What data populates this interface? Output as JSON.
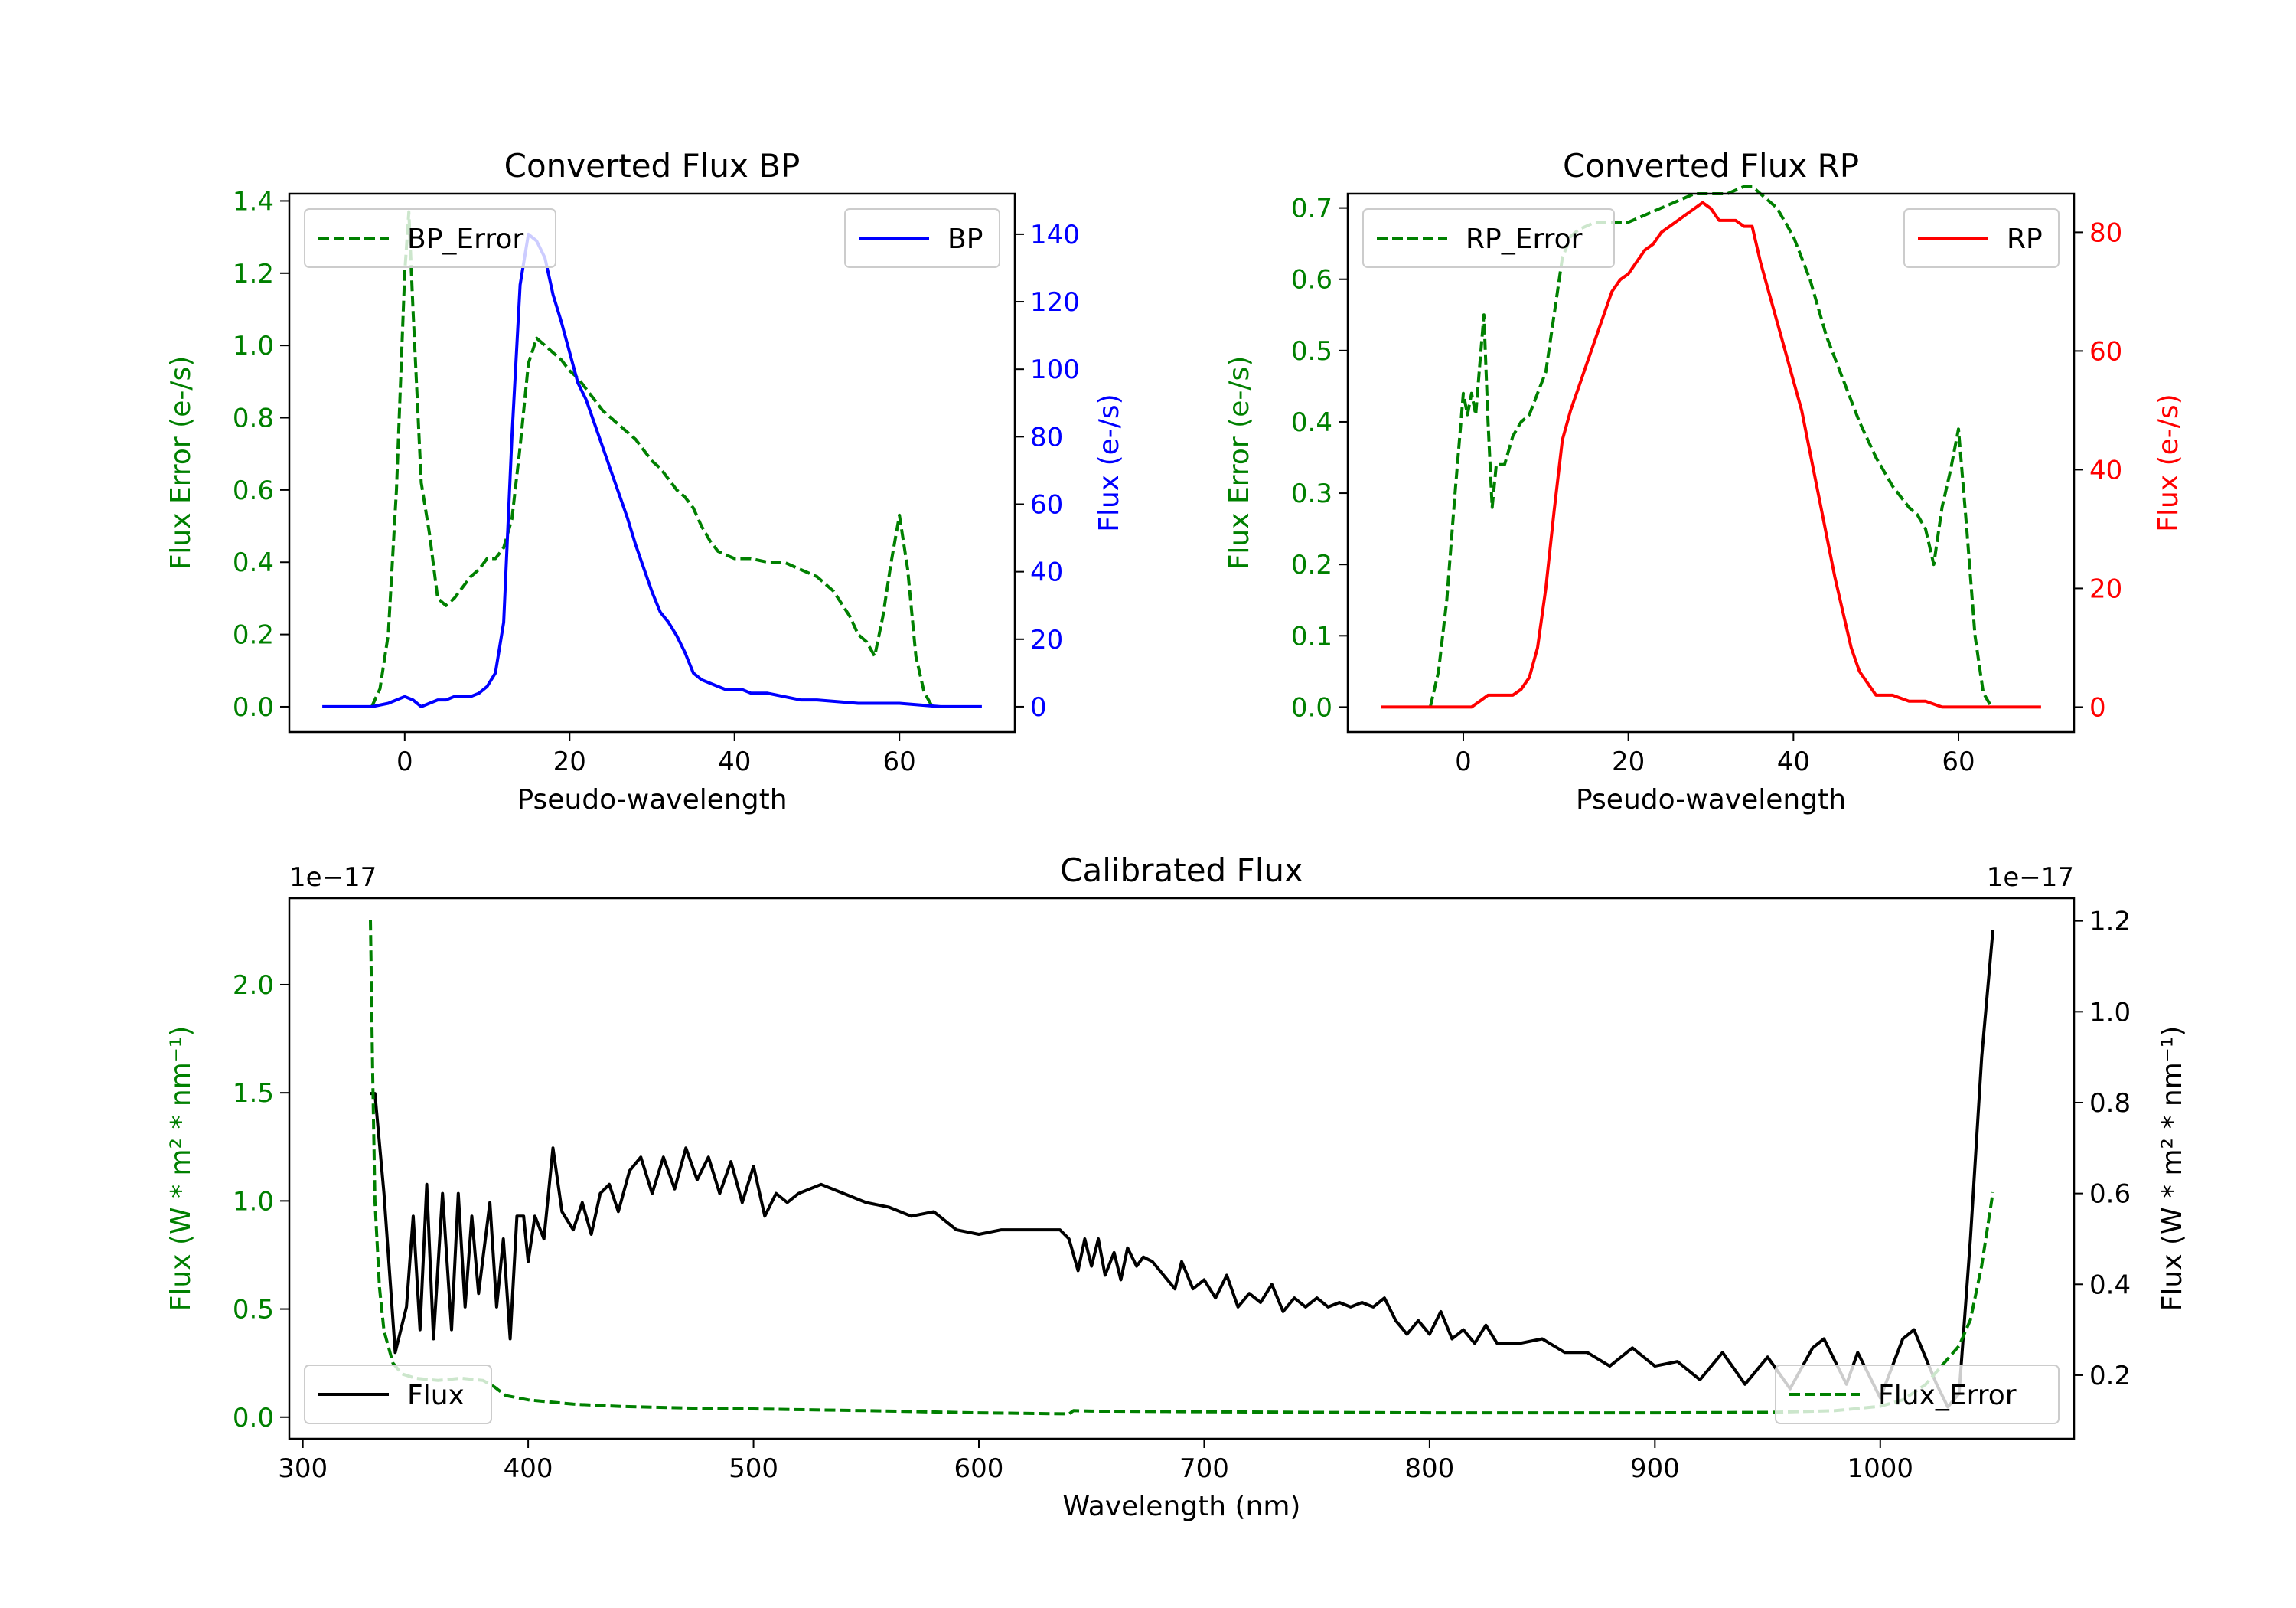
{
  "colors": {
    "green": "#008000",
    "blue": "#0000ff",
    "red": "#ff0000",
    "black": "#000000"
  },
  "chart_data": [
    {
      "id": "bp",
      "type": "line",
      "title": "Converted Flux BP",
      "xlabel": "Pseudo-wavelength",
      "ylabel_left": "Flux Error (e-/s)",
      "ylabel_right": "Flux (e-/s)",
      "xlim": [
        -14,
        74
      ],
      "ylim_left": [
        -0.07,
        1.42
      ],
      "ylim_right": [
        -7.5,
        152
      ],
      "xticks": [
        0,
        20,
        40,
        60
      ],
      "yticks_left": [
        0.0,
        0.2,
        0.4,
        0.6,
        0.8,
        1.0,
        1.2,
        1.4
      ],
      "yticks_right": [
        0,
        20,
        40,
        60,
        80,
        100,
        120,
        140
      ],
      "yticklabels_left": [
        "0.0",
        "0.2",
        "0.4",
        "0.6",
        "0.8",
        "1.0",
        "1.2",
        "1.4"
      ],
      "yticklabels_right": [
        "0",
        "20",
        "40",
        "60",
        "80",
        "100",
        "120",
        "140"
      ],
      "legend_left": "BP_Error",
      "legend_right": "BP",
      "series": [
        {
          "name": "BP_Error",
          "axis": "left",
          "style": "dashed",
          "color": "#008000",
          "x": [
            -4,
            -3,
            -2,
            -1,
            0,
            0.5,
            1,
            2,
            3,
            4,
            5,
            6,
            7,
            8,
            9,
            10,
            11,
            12,
            13,
            14,
            15,
            16,
            17,
            18,
            19,
            20,
            21,
            22,
            23,
            24,
            25,
            26,
            27,
            28,
            29,
            30,
            31,
            32,
            33,
            34,
            35,
            36,
            37,
            38,
            39,
            40,
            42,
            44,
            46,
            48,
            50,
            52,
            54,
            55,
            56,
            57,
            58,
            59,
            60,
            61,
            62,
            63,
            64,
            65
          ],
          "y": [
            0.0,
            0.05,
            0.2,
            0.6,
            1.2,
            1.37,
            1.1,
            0.62,
            0.48,
            0.3,
            0.28,
            0.3,
            0.33,
            0.36,
            0.38,
            0.41,
            0.41,
            0.44,
            0.52,
            0.72,
            0.95,
            1.02,
            1.0,
            0.98,
            0.96,
            0.93,
            0.91,
            0.88,
            0.85,
            0.82,
            0.8,
            0.78,
            0.76,
            0.74,
            0.71,
            0.68,
            0.66,
            0.63,
            0.6,
            0.58,
            0.55,
            0.5,
            0.46,
            0.43,
            0.42,
            0.41,
            0.41,
            0.4,
            0.4,
            0.38,
            0.36,
            0.32,
            0.25,
            0.2,
            0.18,
            0.14,
            0.25,
            0.4,
            0.53,
            0.38,
            0.14,
            0.04,
            0.0,
            0.0
          ]
        },
        {
          "name": "BP",
          "axis": "right",
          "style": "solid",
          "color": "#0000ff",
          "x": [
            -10,
            -6,
            -4,
            -2,
            0,
            1,
            2,
            3,
            4,
            5,
            6,
            7,
            8,
            9,
            10,
            11,
            12,
            13,
            14,
            15,
            16,
            17,
            18,
            19,
            20,
            21,
            22,
            23,
            24,
            25,
            26,
            27,
            28,
            29,
            30,
            31,
            32,
            33,
            34,
            35,
            36,
            37,
            38,
            39,
            40,
            41,
            42,
            44,
            46,
            48,
            50,
            55,
            60,
            65,
            70
          ],
          "y": [
            0,
            0,
            0,
            1,
            3,
            2,
            0,
            1,
            2,
            2,
            3,
            3,
            3,
            4,
            6,
            10,
            25,
            80,
            125,
            140,
            138,
            133,
            122,
            114,
            105,
            96,
            91,
            84,
            77,
            70,
            63,
            56,
            48,
            41,
            34,
            28,
            25,
            21,
            16,
            10,
            8,
            7,
            6,
            5,
            5,
            5,
            4,
            4,
            3,
            2,
            2,
            1,
            1,
            0,
            0
          ]
        }
      ]
    },
    {
      "id": "rp",
      "type": "line",
      "title": "Converted Flux RP",
      "xlabel": "Pseudo-wavelength",
      "ylabel_left": "Flux Error (e-/s)",
      "ylabel_right": "Flux (e-/s)",
      "xlim": [
        -14,
        74
      ],
      "ylim_left": [
        -0.035,
        0.72
      ],
      "ylim_right": [
        -4.2,
        86.5
      ],
      "xticks": [
        0,
        20,
        40,
        60
      ],
      "yticks_left": [
        0.0,
        0.1,
        0.2,
        0.3,
        0.4,
        0.5,
        0.6,
        0.7
      ],
      "yticks_right": [
        0,
        20,
        40,
        60,
        80
      ],
      "yticklabels_left": [
        "0.0",
        "0.1",
        "0.2",
        "0.3",
        "0.4",
        "0.5",
        "0.6",
        "0.7"
      ],
      "yticklabels_right": [
        "0",
        "20",
        "40",
        "60",
        "80"
      ],
      "legend_left": "RP_Error",
      "legend_right": "RP",
      "series": [
        {
          "name": "RP_Error",
          "axis": "left",
          "style": "dashed",
          "color": "#008000",
          "x": [
            -4,
            -3,
            -2,
            -1,
            0,
            0.5,
            1,
            1.5,
            2,
            2.5,
            3,
            3.5,
            4,
            5,
            6,
            7,
            8,
            9,
            10,
            11,
            12,
            13,
            14,
            16,
            18,
            20,
            22,
            24,
            26,
            28,
            30,
            32,
            34,
            35,
            36,
            38,
            40,
            42,
            44,
            46,
            48,
            50,
            52,
            54,
            55,
            56,
            57,
            58,
            59,
            60,
            61,
            62,
            63,
            64
          ],
          "y": [
            0.0,
            0.05,
            0.15,
            0.3,
            0.44,
            0.41,
            0.44,
            0.41,
            0.48,
            0.55,
            0.4,
            0.28,
            0.34,
            0.34,
            0.38,
            0.4,
            0.41,
            0.44,
            0.47,
            0.55,
            0.63,
            0.66,
            0.67,
            0.68,
            0.68,
            0.68,
            0.69,
            0.7,
            0.71,
            0.72,
            0.72,
            0.72,
            0.73,
            0.73,
            0.72,
            0.7,
            0.66,
            0.6,
            0.52,
            0.46,
            0.4,
            0.35,
            0.31,
            0.28,
            0.27,
            0.25,
            0.2,
            0.28,
            0.33,
            0.39,
            0.25,
            0.1,
            0.02,
            0.0
          ]
        },
        {
          "name": "RP",
          "axis": "right",
          "style": "solid",
          "color": "#ff0000",
          "x": [
            -10,
            -4,
            -2,
            0,
            1,
            2,
            3,
            4,
            5,
            6,
            7,
            8,
            9,
            10,
            11,
            12,
            13,
            14,
            15,
            16,
            17,
            18,
            19,
            20,
            21,
            22,
            23,
            24,
            25,
            26,
            27,
            28,
            29,
            30,
            31,
            32,
            33,
            34,
            35,
            36,
            37,
            38,
            39,
            40,
            41,
            42,
            43,
            44,
            45,
            46,
            47,
            48,
            49,
            50,
            52,
            54,
            56,
            58,
            60,
            62,
            64,
            66,
            70
          ],
          "y": [
            0,
            0,
            0,
            0,
            0,
            1,
            2,
            2,
            2,
            2,
            3,
            5,
            10,
            20,
            33,
            45,
            50,
            54,
            58,
            62,
            66,
            70,
            72,
            73,
            75,
            77,
            78,
            80,
            81,
            82,
            83,
            84,
            85,
            84,
            82,
            82,
            82,
            81,
            81,
            75,
            70,
            65,
            60,
            55,
            50,
            43,
            36,
            29,
            22,
            16,
            10,
            6,
            4,
            2,
            2,
            1,
            1,
            0,
            0,
            0,
            0,
            0,
            0
          ]
        }
      ]
    },
    {
      "id": "cal",
      "type": "line",
      "title": "Calibrated Flux",
      "xlabel": "Wavelength (nm)",
      "ylabel_left": "Flux (W * m² * nm⁻¹)",
      "ylabel_right": "Flux (W * m² * nm⁻¹)",
      "offset_left": "1e−17",
      "offset_right": "1e−17",
      "xlim": [
        294,
        1086
      ],
      "ylim_left": [
        -0.1,
        2.4
      ],
      "ylim_right": [
        0.06,
        1.25
      ],
      "xticks": [
        300,
        400,
        500,
        600,
        700,
        800,
        900,
        1000
      ],
      "yticks_left": [
        0.0,
        0.5,
        1.0,
        1.5,
        2.0
      ],
      "yticks_right": [
        0.2,
        0.4,
        0.6,
        0.8,
        1.0,
        1.2
      ],
      "yticklabels_left": [
        "0.0",
        "0.5",
        "1.0",
        "1.5",
        "2.0"
      ],
      "yticklabels_right": [
        "0.2",
        "0.4",
        "0.6",
        "0.8",
        "1.0",
        "1.2"
      ],
      "legend_left": "Flux",
      "legend_right": "Flux_Error",
      "series": [
        {
          "name": "Flux",
          "axis": "right",
          "style": "solid",
          "color": "#000000",
          "x": [
            330,
            332,
            336,
            341,
            346,
            349,
            352,
            355,
            358,
            362,
            366,
            369,
            372,
            375,
            378,
            383,
            386,
            389,
            392,
            395,
            398,
            400,
            403,
            407,
            411,
            415,
            420,
            424,
            428,
            432,
            436,
            440,
            445,
            450,
            455,
            460,
            465,
            470,
            475,
            480,
            485,
            490,
            495,
            500,
            505,
            510,
            515,
            520,
            530,
            540,
            550,
            560,
            570,
            580,
            590,
            600,
            610,
            620,
            630,
            636,
            640,
            644,
            647,
            650,
            653,
            656,
            660,
            663,
            666,
            670,
            673,
            677,
            682,
            687,
            690,
            695,
            700,
            705,
            710,
            715,
            720,
            725,
            730,
            735,
            740,
            745,
            750,
            755,
            760,
            765,
            770,
            775,
            780,
            785,
            790,
            795,
            800,
            805,
            810,
            815,
            820,
            825,
            830,
            840,
            850,
            860,
            870,
            880,
            890,
            900,
            910,
            920,
            930,
            940,
            950,
            960,
            970,
            975,
            980,
            985,
            990,
            1000,
            1010,
            1015,
            1020,
            1025,
            1030,
            1035,
            1040,
            1045,
            1050
          ],
          "y": [
            0.82,
            0.82,
            0.6,
            0.25,
            0.35,
            0.55,
            0.3,
            0.62,
            0.28,
            0.6,
            0.3,
            0.6,
            0.35,
            0.55,
            0.38,
            0.58,
            0.35,
            0.5,
            0.28,
            0.55,
            0.55,
            0.45,
            0.55,
            0.5,
            0.7,
            0.56,
            0.52,
            0.58,
            0.51,
            0.6,
            0.62,
            0.56,
            0.65,
            0.68,
            0.6,
            0.68,
            0.61,
            0.7,
            0.63,
            0.68,
            0.6,
            0.67,
            0.58,
            0.66,
            0.55,
            0.6,
            0.58,
            0.6,
            0.62,
            0.6,
            0.58,
            0.57,
            0.55,
            0.56,
            0.52,
            0.51,
            0.52,
            0.52,
            0.52,
            0.52,
            0.5,
            0.43,
            0.5,
            0.44,
            0.5,
            0.42,
            0.47,
            0.41,
            0.48,
            0.44,
            0.46,
            0.45,
            0.42,
            0.39,
            0.45,
            0.39,
            0.41,
            0.37,
            0.42,
            0.35,
            0.38,
            0.36,
            0.4,
            0.34,
            0.37,
            0.35,
            0.37,
            0.35,
            0.36,
            0.35,
            0.36,
            0.35,
            0.37,
            0.32,
            0.29,
            0.32,
            0.29,
            0.34,
            0.28,
            0.3,
            0.27,
            0.31,
            0.27,
            0.27,
            0.28,
            0.25,
            0.25,
            0.22,
            0.26,
            0.22,
            0.23,
            0.19,
            0.25,
            0.18,
            0.24,
            0.17,
            0.26,
            0.28,
            0.23,
            0.18,
            0.25,
            0.15,
            0.28,
            0.3,
            0.24,
            0.18,
            0.13,
            0.16,
            0.5,
            0.9,
            1.18
          ]
        },
        {
          "name": "Flux_Error",
          "axis": "left",
          "style": "dashed",
          "color": "#008000",
          "x": [
            330,
            331,
            332,
            334,
            336,
            340,
            344,
            350,
            360,
            370,
            380,
            385,
            390,
            395,
            400,
            410,
            420,
            440,
            460,
            480,
            500,
            550,
            600,
            640,
            642,
            650,
            700,
            750,
            800,
            850,
            900,
            950,
            980,
            1000,
            1010,
            1020,
            1030,
            1035,
            1040,
            1045,
            1050
          ],
          "y": [
            2.3,
            1.6,
            1.0,
            0.6,
            0.4,
            0.25,
            0.2,
            0.18,
            0.17,
            0.18,
            0.17,
            0.14,
            0.1,
            0.09,
            0.08,
            0.07,
            0.06,
            0.05,
            0.045,
            0.04,
            0.038,
            0.03,
            0.02,
            0.015,
            0.03,
            0.028,
            0.025,
            0.022,
            0.02,
            0.02,
            0.02,
            0.022,
            0.03,
            0.05,
            0.08,
            0.15,
            0.27,
            0.33,
            0.45,
            0.7,
            1.04
          ]
        }
      ]
    }
  ]
}
